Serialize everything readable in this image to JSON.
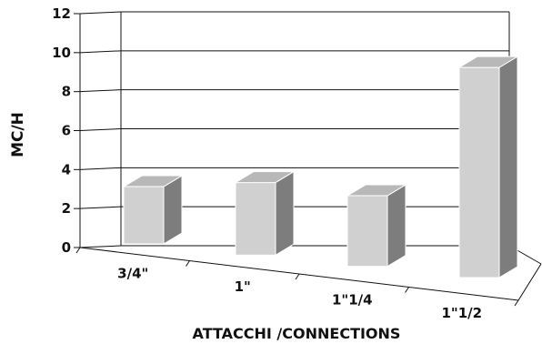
{
  "chart_data": {
    "type": "bar",
    "categories": [
      "3/4\"",
      "1\"",
      "1\"1/4",
      "1\"1/2"
    ],
    "values": [
      3,
      3.8,
      3.7,
      11
    ],
    "ylabel": "MC/H",
    "xlabel": "ATTACCHI /CONNECTIONS",
    "ylim": [
      0,
      12
    ],
    "yticks": [
      "0",
      "2",
      "4",
      "6",
      "8",
      "10",
      "12"
    ],
    "grid": true,
    "legend": "none",
    "colors": {
      "bar_front": "#d0d0d0",
      "bar_top": "#b8b8b8",
      "bar_side": "#7d7d7d",
      "grid": "#111111"
    }
  }
}
